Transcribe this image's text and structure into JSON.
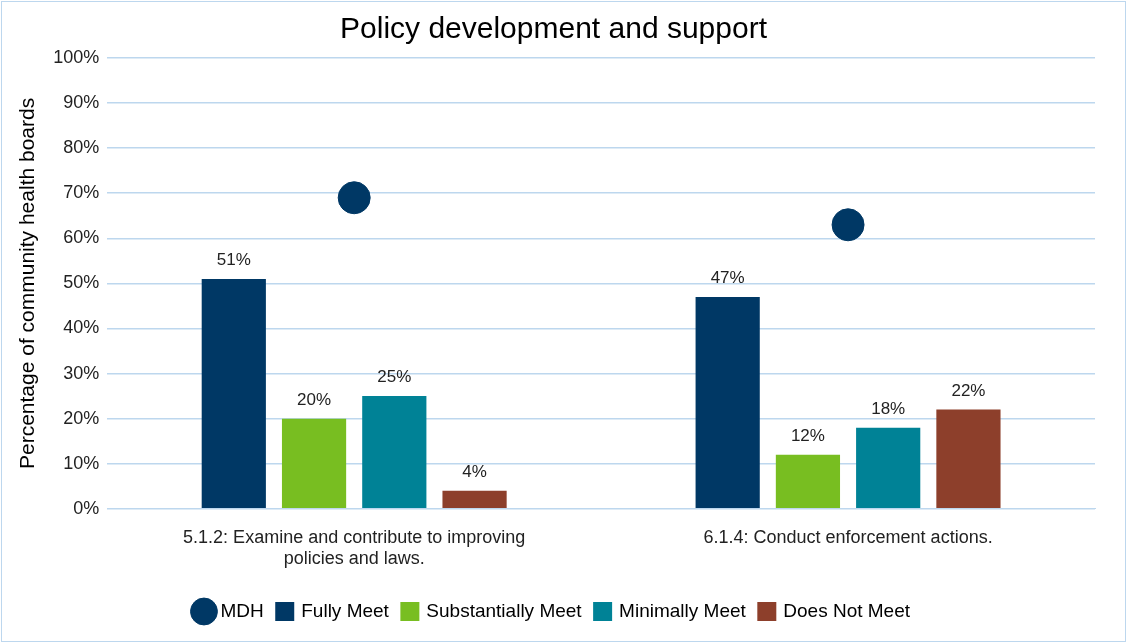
{
  "chart_data": {
    "type": "bar",
    "title": "Policy development and support",
    "ylabel": "Percentage of community health boards",
    "categories": [
      "5.1.2: Examine and contribute to improving policies and laws.",
      "6.1.4: Conduct enforcement actions."
    ],
    "series": [
      {
        "name": "MDH",
        "type": "scatter",
        "color": "#003865",
        "x": [
          "5.1.2: Examine and contribute to improving policies and laws.",
          "6.1.4: Conduct enforcement actions."
        ],
        "values": [
          69,
          63
        ]
      },
      {
        "name": "Fully Meet",
        "color": "#003865",
        "values": [
          51,
          47
        ],
        "value_labels": [
          "51%",
          "47%"
        ]
      },
      {
        "name": "Substantially Meet",
        "color": "#78be21",
        "values": [
          20,
          12
        ],
        "value_labels": [
          "20%",
          "12%"
        ]
      },
      {
        "name": "Minimally Meet",
        "color": "#008296",
        "values": [
          25,
          18
        ],
        "value_labels": [
          "25%",
          "18%"
        ]
      },
      {
        "name": "Does Not Meet",
        "color": "#8d3f2b",
        "values": [
          4,
          22
        ],
        "value_labels": [
          "4%",
          "22%"
        ]
      }
    ],
    "ylim": [
      0,
      100
    ],
    "yticks": [
      {
        "value": 0,
        "label": "0%"
      },
      {
        "value": 10,
        "label": "10%"
      },
      {
        "value": 20,
        "label": "20%"
      },
      {
        "value": 30,
        "label": "30%"
      },
      {
        "value": 40,
        "label": "40%"
      },
      {
        "value": 50,
        "label": "50%"
      },
      {
        "value": 60,
        "label": "60%"
      },
      {
        "value": 70,
        "label": "70%"
      },
      {
        "value": 80,
        "label": "80%"
      },
      {
        "value": 90,
        "label": "90%"
      },
      {
        "value": 100,
        "label": "100%"
      }
    ],
    "grid": "y",
    "legend": "bottom",
    "marker": "circle"
  }
}
